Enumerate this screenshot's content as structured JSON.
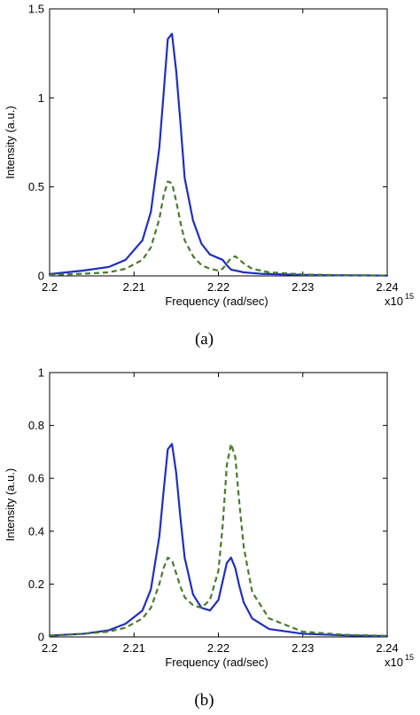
{
  "chart_data": [
    {
      "type": "line",
      "caption": "(a)",
      "xlabel": "Frequency (rad/sec)",
      "ylabel": "Intensity (a.u.)",
      "x_exponent_label": "x10",
      "x_exponent": "15",
      "xlim": [
        2.2,
        2.24
      ],
      "ylim": [
        0,
        1.5
      ],
      "xticks": [
        2.2,
        2.21,
        2.22,
        2.23,
        2.24
      ],
      "xtick_labels": [
        "2.2",
        "2.21",
        "2.22",
        "2.23",
        "2.24"
      ],
      "yticks": [
        0,
        0.5,
        1,
        1.5
      ],
      "ytick_labels": [
        "0",
        "0.5",
        "1",
        "1.5"
      ],
      "grid": false,
      "series": [
        {
          "style": "solid",
          "color": "#1f2fbf",
          "x": [
            2.2,
            2.204,
            2.207,
            2.209,
            2.211,
            2.212,
            2.213,
            2.2135,
            2.214,
            2.2145,
            2.215,
            2.2155,
            2.216,
            2.217,
            2.218,
            2.219,
            2.22,
            2.2205,
            2.221,
            2.2215,
            2.222,
            2.223,
            2.225,
            2.23,
            2.235,
            2.24
          ],
          "y": [
            0.01,
            0.03,
            0.05,
            0.09,
            0.2,
            0.36,
            0.72,
            1.02,
            1.33,
            1.36,
            1.15,
            0.86,
            0.55,
            0.31,
            0.18,
            0.12,
            0.1,
            0.09,
            0.06,
            0.035,
            0.03,
            0.02,
            0.012,
            0.006,
            0.003,
            0.002
          ]
        },
        {
          "style": "dashed",
          "color": "#4a7a2c",
          "x": [
            2.2,
            2.204,
            2.207,
            2.209,
            2.211,
            2.212,
            2.213,
            2.2135,
            2.214,
            2.2145,
            2.215,
            2.2155,
            2.216,
            2.217,
            2.218,
            2.219,
            2.22,
            2.2205,
            2.221,
            2.2215,
            2.222,
            2.2225,
            2.223,
            2.224,
            2.226,
            2.23,
            2.235,
            2.24
          ],
          "y": [
            0.005,
            0.012,
            0.02,
            0.04,
            0.09,
            0.16,
            0.32,
            0.45,
            0.53,
            0.52,
            0.42,
            0.3,
            0.2,
            0.11,
            0.06,
            0.04,
            0.03,
            0.04,
            0.07,
            0.1,
            0.11,
            0.09,
            0.07,
            0.04,
            0.02,
            0.008,
            0.004,
            0.002
          ]
        }
      ]
    },
    {
      "type": "line",
      "caption": "(b)",
      "xlabel": "Frequency (rad/sec)",
      "ylabel": "Intensity (a.u.)",
      "x_exponent_label": "x10",
      "x_exponent": "15",
      "xlim": [
        2.2,
        2.24
      ],
      "ylim": [
        0,
        1
      ],
      "xticks": [
        2.2,
        2.21,
        2.22,
        2.23,
        2.24
      ],
      "xtick_labels": [
        "2.2",
        "2.21",
        "2.22",
        "2.23",
        "2.24"
      ],
      "yticks": [
        0,
        0.2,
        0.4,
        0.6,
        0.8,
        1
      ],
      "ytick_labels": [
        "0",
        "0.2",
        "0.4",
        "0.6",
        "0.8",
        "1"
      ],
      "grid": false,
      "series": [
        {
          "style": "solid",
          "color": "#1f2fbf",
          "x": [
            2.2,
            2.204,
            2.207,
            2.209,
            2.211,
            2.212,
            2.213,
            2.2135,
            2.214,
            2.2145,
            2.215,
            2.2155,
            2.216,
            2.217,
            2.218,
            2.219,
            2.22,
            2.2205,
            2.221,
            2.2215,
            2.222,
            2.2225,
            2.223,
            2.224,
            2.226,
            2.23,
            2.235,
            2.24
          ],
          "y": [
            0.005,
            0.012,
            0.025,
            0.05,
            0.1,
            0.18,
            0.38,
            0.55,
            0.71,
            0.73,
            0.62,
            0.45,
            0.3,
            0.16,
            0.11,
            0.1,
            0.14,
            0.21,
            0.28,
            0.3,
            0.26,
            0.19,
            0.13,
            0.07,
            0.03,
            0.012,
            0.006,
            0.003
          ]
        },
        {
          "style": "dashed",
          "color": "#4a7a2c",
          "x": [
            2.2,
            2.204,
            2.207,
            2.209,
            2.211,
            2.212,
            2.213,
            2.2135,
            2.214,
            2.2145,
            2.215,
            2.2155,
            2.216,
            2.217,
            2.218,
            2.219,
            2.22,
            2.2205,
            2.221,
            2.2215,
            2.222,
            2.2225,
            2.223,
            2.224,
            2.226,
            2.23,
            2.235,
            2.24
          ],
          "y": [
            0.005,
            0.012,
            0.02,
            0.035,
            0.07,
            0.11,
            0.2,
            0.26,
            0.3,
            0.29,
            0.24,
            0.19,
            0.15,
            0.12,
            0.11,
            0.14,
            0.25,
            0.42,
            0.65,
            0.73,
            0.68,
            0.5,
            0.34,
            0.17,
            0.07,
            0.02,
            0.008,
            0.004
          ]
        }
      ]
    }
  ]
}
